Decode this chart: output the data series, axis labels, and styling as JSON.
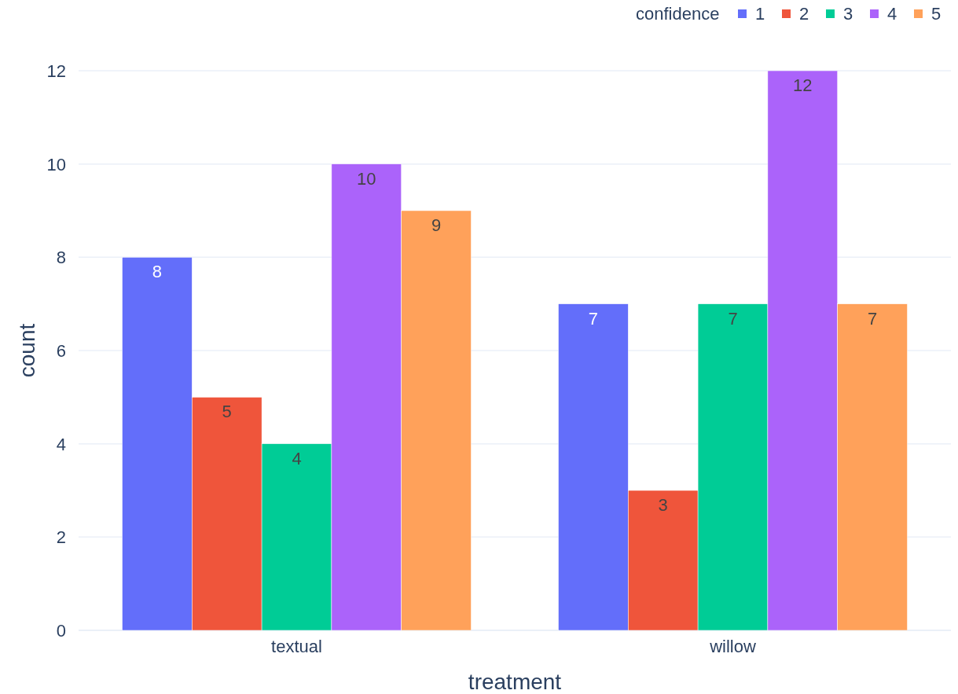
{
  "chart_data": {
    "type": "bar",
    "xlabel": "treatment",
    "ylabel": "count",
    "legend_title": "confidence",
    "categories": [
      "textual",
      "willow"
    ],
    "series": [
      {
        "name": "1",
        "color": "#636efa",
        "values": [
          8,
          7
        ]
      },
      {
        "name": "2",
        "color": "#ef553b",
        "values": [
          5,
          3
        ]
      },
      {
        "name": "3",
        "color": "#00cc96",
        "values": [
          4,
          7
        ]
      },
      {
        "name": "4",
        "color": "#ab63fa",
        "values": [
          10,
          12
        ]
      },
      {
        "name": "5",
        "color": "#ffa15a",
        "values": [
          9,
          7
        ]
      }
    ],
    "ylim": [
      0,
      12
    ],
    "yticks": [
      0,
      2,
      4,
      6,
      8,
      10,
      12
    ],
    "grid": "y",
    "legend": "top right",
    "data_labels": true
  }
}
